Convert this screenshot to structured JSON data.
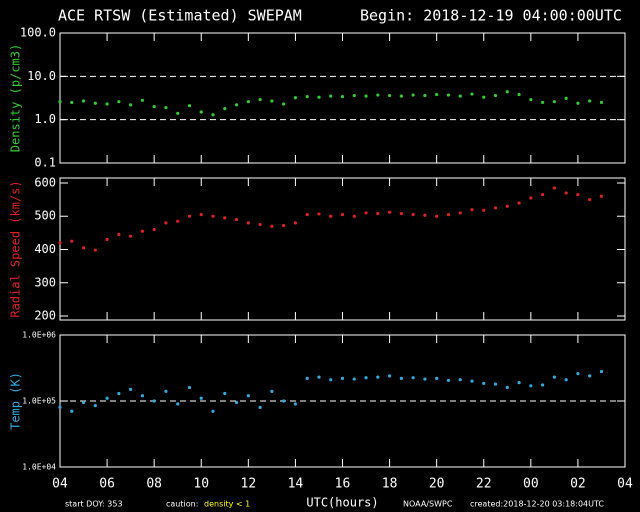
{
  "header": {
    "title": "ACE RTSW (Estimated) SWEPAM",
    "begin": "Begin: 2018-12-19 04:00:00UTC"
  },
  "footer": {
    "start": "start DOY: 353",
    "caution": "caution:",
    "caution_note": "density < 1",
    "source": "NOAA/SWPC",
    "created": "created:2018-12-20 03:18:04UTC"
  },
  "chart_data": [
    {
      "type": "scatter",
      "ylabel": "Density (p/cm3)",
      "color": "#33cc33",
      "log": true,
      "hlines": [
        1,
        10
      ],
      "xlim": [
        4,
        28
      ],
      "ylim": [
        0.1,
        100
      ],
      "yticks": [
        0.1,
        {
          "value": 1,
          "label": "1.0"
        },
        {
          "value": 10,
          "label": "10.0"
        },
        {
          "value": 100,
          "label": "100.0"
        }
      ],
      "x": [
        4,
        4.5,
        5,
        5.5,
        6,
        6.5,
        7,
        7.5,
        8,
        8.5,
        9,
        9.5,
        10,
        10.5,
        11,
        11.5,
        12,
        12.5,
        13,
        13.5,
        14,
        14.5,
        15,
        15.5,
        16,
        16.5,
        17,
        17.5,
        18,
        18.5,
        19,
        19.5,
        20,
        20.5,
        21,
        21.5,
        22,
        22.5,
        23,
        23.5,
        24,
        24.5,
        25,
        25.5,
        26,
        26.5,
        27
      ],
      "values": [
        2.6,
        2.5,
        2.7,
        2.4,
        2.3,
        2.6,
        2.2,
        2.8,
        2.0,
        1.9,
        1.4,
        2.1,
        1.5,
        1.3,
        1.8,
        2.2,
        2.6,
        2.9,
        2.7,
        2.3,
        3.2,
        3.4,
        3.3,
        3.5,
        3.4,
        3.6,
        3.5,
        3.7,
        3.6,
        3.5,
        3.7,
        3.6,
        3.8,
        3.7,
        3.5,
        3.9,
        3.3,
        3.6,
        4.4,
        3.8,
        2.9,
        2.5,
        2.6,
        3.1,
        2.4,
        2.7,
        2.5
      ]
    },
    {
      "type": "scatter",
      "ylabel": "Radial Speed (km/s)",
      "color": "#dd2222",
      "log": false,
      "xlim": [
        4,
        28
      ],
      "ylim": [
        188,
        615
      ],
      "yticks": [
        200,
        300,
        400,
        500,
        600
      ],
      "x": [
        4,
        4.5,
        5,
        5.5,
        6,
        6.5,
        7,
        7.5,
        8,
        8.5,
        9,
        9.5,
        10,
        10.5,
        11,
        11.5,
        12,
        12.5,
        13,
        13.5,
        14,
        14.5,
        15,
        15.5,
        16,
        16.5,
        17,
        17.5,
        18,
        18.5,
        19,
        19.5,
        20,
        20.5,
        21,
        21.5,
        22,
        22.5,
        23,
        23.5,
        24,
        24.5,
        25,
        25.5,
        26,
        26.5,
        27
      ],
      "values": [
        420,
        425,
        405,
        398,
        430,
        445,
        440,
        455,
        460,
        480,
        485,
        500,
        505,
        500,
        495,
        490,
        480,
        475,
        470,
        472,
        480,
        505,
        507,
        500,
        505,
        500,
        510,
        508,
        512,
        508,
        505,
        503,
        500,
        505,
        510,
        520,
        518,
        525,
        530,
        540,
        555,
        565,
        585,
        570,
        565,
        550,
        560
      ]
    },
    {
      "type": "scatter",
      "ylabel": "Temp (K)",
      "xlabel": "UTC(hours)",
      "color": "#33aadd",
      "log": true,
      "hlines": [
        100000
      ],
      "xlim": [
        4,
        28
      ],
      "ylim": [
        10000,
        1000000
      ],
      "xticks": [
        {
          "value": 4,
          "label": "04"
        },
        {
          "value": 6,
          "label": "06"
        },
        {
          "value": 8,
          "label": "08"
        },
        10,
        12,
        14,
        16,
        18,
        20,
        22,
        {
          "value": 24,
          "label": "00"
        },
        {
          "value": 26,
          "label": "02"
        },
        {
          "value": 28,
          "label": "04"
        }
      ],
      "yticks": [
        {
          "value": 10000,
          "label": "1.0E+04"
        },
        {
          "value": 100000,
          "label": "1.0E+05"
        },
        {
          "value": 1000000,
          "label": "1.0E+06"
        }
      ],
      "x": [
        4,
        4.5,
        5,
        5.5,
        6,
        6.5,
        7,
        7.5,
        8,
        8.5,
        9,
        9.5,
        10,
        10.5,
        11,
        11.5,
        12,
        12.5,
        13,
        13.5,
        14,
        14.5,
        15,
        15.5,
        16,
        16.5,
        17,
        17.5,
        18,
        18.5,
        19,
        19.5,
        20,
        20.5,
        21,
        21.5,
        22,
        22.5,
        23,
        23.5,
        24,
        24.5,
        25,
        25.5,
        26,
        26.5,
        27
      ],
      "values": [
        80000,
        70000,
        95000,
        85000,
        110000,
        130000,
        150000,
        120000,
        100000,
        140000,
        90000,
        160000,
        110000,
        70000,
        130000,
        95000,
        120000,
        80000,
        140000,
        100000,
        90000,
        220000,
        230000,
        210000,
        220000,
        215000,
        225000,
        230000,
        240000,
        220000,
        225000,
        215000,
        220000,
        205000,
        210000,
        200000,
        185000,
        180000,
        160000,
        190000,
        170000,
        175000,
        230000,
        210000,
        260000,
        240000,
        280000
      ]
    }
  ]
}
